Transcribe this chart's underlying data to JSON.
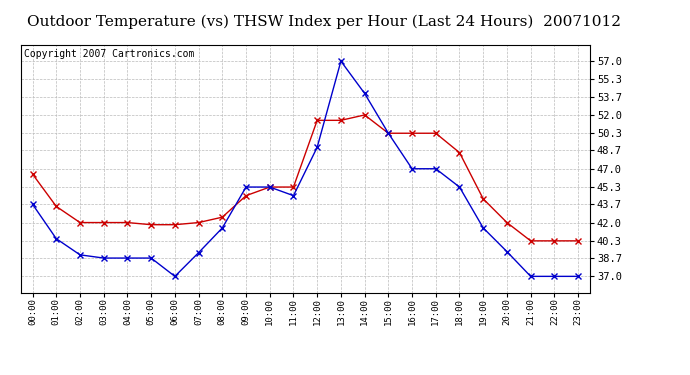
{
  "title": "Outdoor Temperature (vs) THSW Index per Hour (Last 24 Hours)  20071012",
  "copyright": "Copyright 2007 Cartronics.com",
  "hours": [
    0,
    1,
    2,
    3,
    4,
    5,
    6,
    7,
    8,
    9,
    10,
    11,
    12,
    13,
    14,
    15,
    16,
    17,
    18,
    19,
    20,
    21,
    22,
    23
  ],
  "hour_labels": [
    "00:00",
    "01:00",
    "02:00",
    "03:00",
    "04:00",
    "05:00",
    "06:00",
    "07:00",
    "08:00",
    "09:00",
    "10:00",
    "11:00",
    "12:00",
    "13:00",
    "14:00",
    "15:00",
    "16:00",
    "17:00",
    "18:00",
    "19:00",
    "20:00",
    "21:00",
    "22:00",
    "23:00"
  ],
  "temp_red": [
    46.5,
    43.5,
    42.0,
    42.0,
    42.0,
    41.8,
    41.8,
    42.0,
    42.5,
    44.5,
    45.3,
    45.3,
    51.5,
    51.5,
    52.0,
    50.3,
    50.3,
    50.3,
    48.5,
    44.2,
    42.0,
    40.3,
    40.3,
    40.3
  ],
  "thsw_blue": [
    43.7,
    40.5,
    39.0,
    38.7,
    38.7,
    38.7,
    37.0,
    39.2,
    41.5,
    45.3,
    45.3,
    44.5,
    49.0,
    57.0,
    54.0,
    50.3,
    47.0,
    47.0,
    45.3,
    41.5,
    39.3,
    37.0,
    37.0,
    37.0
  ],
  "ylim": [
    35.5,
    58.5
  ],
  "yticks": [
    37.0,
    38.7,
    40.3,
    42.0,
    43.7,
    45.3,
    47.0,
    48.7,
    50.3,
    52.0,
    53.7,
    55.3,
    57.0
  ],
  "red_color": "#cc0000",
  "blue_color": "#0000cc",
  "grid_color": "#bbbbbb",
  "bg_color": "#ffffff",
  "title_fontsize": 11,
  "copyright_fontsize": 7
}
